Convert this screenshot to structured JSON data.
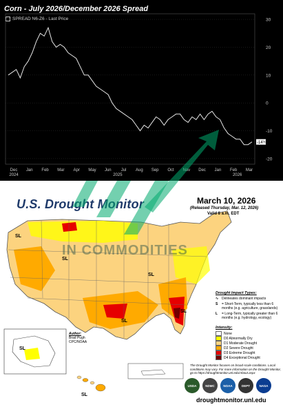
{
  "chart": {
    "title": "Corn - July 2026/December 2026 Spread",
    "legend_text": "SPREAD N6-Z6 - Last Price",
    "last_value_label": "-14¾",
    "colors": {
      "background": "#000000",
      "line": "#e6e6e6",
      "axis_text": "#cccccc"
    }
  },
  "chart_data": {
    "type": "line",
    "title": "Corn - July 2026/December 2026 Spread",
    "x_tick_labels": [
      "Dec\n2024",
      "Jan",
      "Feb",
      "Mar",
      "Apr",
      "May",
      "Jun",
      "Jul",
      "Aug",
      "Sep",
      "Oct",
      "Nov",
      "Dec",
      "Jan",
      "Feb",
      "Mar"
    ],
    "year_labels": [
      "2025",
      "2026"
    ],
    "y_ticks": [
      30,
      20,
      10,
      0,
      -10,
      -20
    ],
    "ylim": [
      -22,
      32
    ],
    "series": [
      {
        "values": [
          10,
          11,
          12,
          9,
          13,
          15,
          18,
          22,
          25,
          24,
          27,
          22,
          20,
          21,
          20,
          18,
          17,
          16,
          13,
          10,
          10,
          8,
          6,
          5,
          4,
          3,
          0,
          -2,
          -3,
          -4,
          -5,
          -6,
          -8,
          -10,
          -8,
          -9,
          -7,
          -5,
          -6,
          -8,
          -6,
          -5,
          -4,
          -4,
          -6,
          -7,
          -5,
          -6,
          -4,
          -6,
          -4,
          -3,
          -5,
          -6,
          -9,
          -11,
          -12,
          -13,
          -13,
          -15,
          -15,
          -14
        ]
      }
    ],
    "annotation": "-14¾"
  },
  "map": {
    "title": "U.S. Drought Monitor",
    "date": "March 10, 2026",
    "released": "(Released Thursday, Mar. 12, 2026)",
    "valid": "Valid 8 a.m. EDT",
    "impact_title": "Drought Impact Types:",
    "impact_items": [
      {
        "key": "∿",
        "text": "Delineates dominant impacts"
      },
      {
        "key": "S",
        "text": "= Short-Term, typically less than 6 months (e.g. agriculture, grasslands)"
      },
      {
        "key": "L",
        "text": "= Long-Term, typically greater than 6 months (e.g. hydrology, ecology)"
      }
    ],
    "intensity_title": "Intensity:",
    "intensity_levels": [
      {
        "label": "None",
        "color": "#ffffff"
      },
      {
        "label": "D0 Abnormally Dry",
        "color": "#ffff00"
      },
      {
        "label": "D1 Moderate Drought",
        "color": "#fcd37f"
      },
      {
        "label": "D2 Severe Drought",
        "color": "#ffaa00"
      },
      {
        "label": "D3 Extreme Drought",
        "color": "#e60000"
      },
      {
        "label": "D4 Exceptional Drought",
        "color": "#730000"
      }
    ],
    "note": "The Drought Monitor focuses on broad-scale conditions. Local conditions may vary. For more information on the Drought Monitor, go to https://droughtmonitor.unl.edu/About.aspx",
    "author_label": "Author:",
    "author_name": "Brad Pugh",
    "author_org": "CPC/NOAA",
    "agencies": [
      "USDA",
      "NDMC",
      "NOAA",
      "DEPT",
      "NASA"
    ],
    "url": "droughtmonitor.unl.edu",
    "region_labels": [
      "SL",
      "SL",
      "SL",
      "SL",
      "SL",
      "SL",
      "SL"
    ]
  },
  "watermark": {
    "text": "IN COMMODITIES"
  }
}
